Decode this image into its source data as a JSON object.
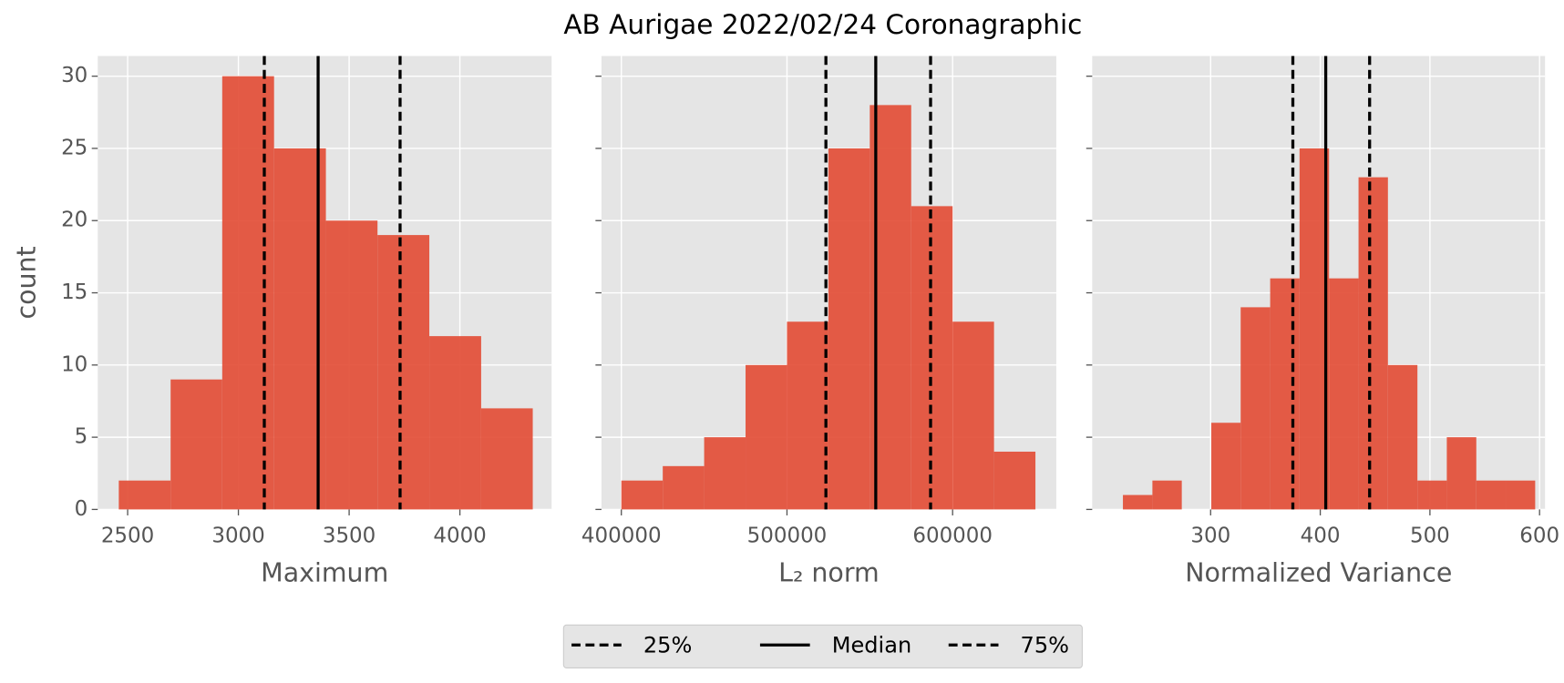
{
  "title": "AB Aurigae 2022/02/24 Coronagraphic",
  "chart_data": [
    {
      "type": "histogram",
      "xlabel": "Maximum",
      "ylabel": "count",
      "color": "#e24a33",
      "grid": true,
      "bins": [
        2460,
        2694,
        2927,
        3161,
        3395,
        3628,
        3862,
        4096,
        4329
      ],
      "counts": [
        2,
        9,
        30,
        25,
        20,
        19,
        12,
        7
      ],
      "xlim": [
        2365,
        4414
      ],
      "xticks": [
        2500,
        3000,
        3500,
        4000
      ],
      "ylim": [
        0,
        31.4
      ],
      "yticks": [
        0,
        5,
        10,
        15,
        20,
        25,
        30
      ],
      "lines": [
        {
          "name": "25%",
          "value": 3117,
          "style": "dashed",
          "color": "#000000"
        },
        {
          "name": "Median",
          "value": 3360,
          "style": "solid",
          "color": "#000000"
        },
        {
          "name": "75%",
          "value": 3730,
          "style": "dashed",
          "color": "#000000"
        }
      ]
    },
    {
      "type": "histogram",
      "xlabel": "L₂ norm",
      "color": "#e24a33",
      "grid": true,
      "bins": [
        400000,
        425000,
        450000,
        475000,
        500000,
        525000,
        550000,
        575000,
        600000,
        625000,
        650000
      ],
      "counts": [
        2,
        3,
        5,
        10,
        13,
        25,
        28,
        21,
        13,
        4
      ],
      "xlim": [
        388000,
        662600
      ],
      "xticks": [
        400000,
        500000,
        600000
      ],
      "ylim": [
        0,
        31.4
      ],
      "yticks": [
        0,
        5,
        10,
        15,
        20,
        25,
        30
      ],
      "lines": [
        {
          "name": "25%",
          "value": 523500,
          "style": "dashed",
          "color": "#000000"
        },
        {
          "name": "Median",
          "value": 553600,
          "style": "solid",
          "color": "#000000"
        },
        {
          "name": "75%",
          "value": 586700,
          "style": "dashed",
          "color": "#000000"
        }
      ]
    },
    {
      "type": "histogram",
      "xlabel": "Normalized Variance",
      "color": "#e24a33",
      "grid": true,
      "bins": [
        220,
        246.9,
        273.7,
        300.6,
        327.4,
        354.3,
        381.1,
        408,
        434.9,
        461.7,
        488.6,
        515.4,
        542.3,
        569.1,
        596
      ],
      "counts": [
        1,
        2,
        0,
        6,
        14,
        16,
        25,
        16,
        23,
        10,
        2,
        5,
        2,
        2
      ],
      "xlim": [
        192,
        605
      ],
      "xticks": [
        300,
        400,
        500,
        600
      ],
      "ylim": [
        0,
        31.4
      ],
      "yticks": [
        0,
        5,
        10,
        15,
        20,
        25,
        30
      ],
      "lines": [
        {
          "name": "25%",
          "value": 375,
          "style": "dashed",
          "color": "#000000"
        },
        {
          "name": "Median",
          "value": 405,
          "style": "solid",
          "color": "#000000"
        },
        {
          "name": "75%",
          "value": 445,
          "style": "dashed",
          "color": "#000000"
        }
      ]
    }
  ]
}
